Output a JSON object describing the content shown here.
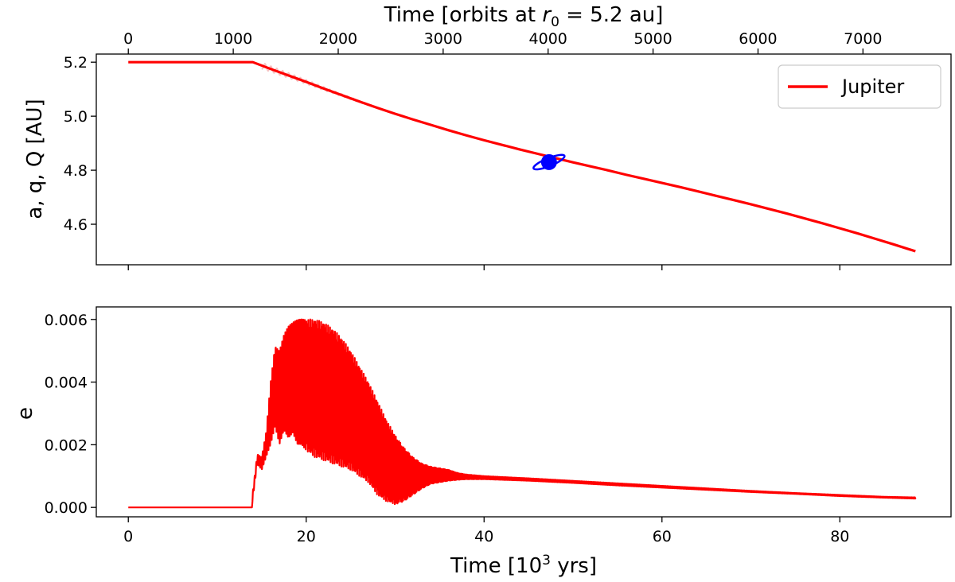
{
  "colors": {
    "series": "#ff0000",
    "marker": "#0000ff",
    "legend_border": "#cccccc"
  },
  "chart_data": [
    {
      "type": "line",
      "ylabel": "a, q, Q [AU]",
      "xlim": [
        -3.6,
        92.5
      ],
      "ylim": [
        4.45,
        5.23
      ],
      "x_ticks": [
        0,
        20,
        40,
        60,
        80
      ],
      "y_ticks": [
        4.6,
        4.8,
        5.0,
        5.2
      ],
      "y_tick_labels": [
        "4.6",
        "4.8",
        "5.0",
        "5.2"
      ],
      "top_axis": {
        "label_main": "Time [orbits at ",
        "label_math": "r",
        "label_sub": "0",
        "label_rest": " = 5.2 au]",
        "ticks": [
          0,
          1000,
          2000,
          3000,
          4000,
          5000,
          6000,
          7000
        ],
        "tick_labels": [
          "0",
          "1000",
          "2000",
          "3000",
          "4000",
          "5000",
          "6000",
          "7000"
        ]
      },
      "legend": {
        "position": "top-right",
        "entries": [
          "Jupiter"
        ]
      },
      "series": [
        {
          "name": "Jupiter",
          "x": [
            0,
            5,
            10,
            14,
            16,
            18,
            20,
            22,
            24,
            26,
            28,
            30,
            32,
            34,
            36,
            38,
            40,
            42,
            44,
            46,
            48,
            50,
            52,
            54,
            56,
            58,
            60,
            62,
            64,
            66,
            68,
            70,
            72,
            74,
            76,
            78,
            80,
            82,
            84,
            86,
            88.5
          ],
          "y": [
            5.2,
            5.2,
            5.2,
            5.2,
            5.175,
            5.151,
            5.127,
            5.102,
            5.078,
            5.054,
            5.031,
            5.009,
            4.988,
            4.968,
            4.948,
            4.929,
            4.911,
            4.894,
            4.877,
            4.861,
            4.845,
            4.829,
            4.814,
            4.799,
            4.783,
            4.768,
            4.753,
            4.738,
            4.722,
            4.706,
            4.69,
            4.674,
            4.657,
            4.64,
            4.622,
            4.604,
            4.585,
            4.566,
            4.546,
            4.526,
            4.5
          ]
        }
      ],
      "envelope": {
        "x_start": 15,
        "x_end": 28,
        "amp_start": 0.012,
        "amp_end": 0.002
      },
      "marker": {
        "x": 47.3,
        "y": 4.83,
        "shape": "ringed-planet"
      }
    },
    {
      "type": "line",
      "xlabel_main": "Time [10",
      "xlabel_sup": "3",
      "xlabel_rest": " yrs]",
      "ylabel": "e",
      "xlim": [
        -3.6,
        92.5
      ],
      "ylim": [
        -0.0003,
        0.0064
      ],
      "x_ticks": [
        0,
        20,
        40,
        60,
        80
      ],
      "x_tick_labels": [
        "0",
        "20",
        "40",
        "60",
        "80"
      ],
      "y_ticks": [
        0,
        0.002,
        0.004,
        0.006
      ],
      "y_tick_labels": [
        "0.000",
        "0.002",
        "0.004",
        "0.006"
      ],
      "series": [
        {
          "name": "Jupiter",
          "envelope_x": [
            0,
            13.9,
            14.0,
            14.5,
            15.0,
            15.5,
            16.0,
            16.5,
            17.0,
            17.5,
            18.0,
            18.5,
            19.0,
            20.0,
            21.0,
            22.0,
            23.0,
            24.0,
            25.0,
            26.0,
            27.0,
            28.0,
            29.0,
            30.0,
            31.0,
            32.0,
            33.0,
            34.0,
            35.0,
            36.0,
            37.0,
            38.0,
            40.0,
            45.0,
            50.0,
            55.0,
            60.0,
            65.0,
            70.0,
            75.0,
            80.0,
            85.0,
            88.5
          ],
          "upper": [
            0,
            0,
            0.0005,
            0.0017,
            0.0016,
            0.0024,
            0.004,
            0.0052,
            0.005,
            0.0055,
            0.0058,
            0.006,
            0.006,
            0.006,
            0.006,
            0.0059,
            0.0057,
            0.0054,
            0.005,
            0.0045,
            0.004,
            0.0034,
            0.0028,
            0.0023,
            0.0019,
            0.0016,
            0.0014,
            0.0013,
            0.00125,
            0.0012,
            0.0011,
            0.00105,
            0.001,
            0.00093,
            0.00085,
            0.00077,
            0.00069,
            0.00061,
            0.00053,
            0.00046,
            0.0004,
            0.00034,
            0.00032
          ],
          "lower": [
            0,
            0,
            0.0003,
            0.0014,
            0.0012,
            0.0016,
            0.002,
            0.0026,
            0.002,
            0.0024,
            0.0022,
            0.0024,
            0.002,
            0.0018,
            0.0016,
            0.0015,
            0.0014,
            0.0013,
            0.0012,
            0.001,
            0.0008,
            0.0004,
            0.0002,
            0.0001,
            0.0002,
            0.0004,
            0.0006,
            0.00075,
            0.0008,
            0.00085,
            0.00088,
            0.0009,
            0.0009,
            0.00085,
            0.00078,
            0.0007,
            0.00063,
            0.00056,
            0.00049,
            0.00043,
            0.00036,
            0.00031,
            0.00028
          ]
        }
      ]
    }
  ]
}
